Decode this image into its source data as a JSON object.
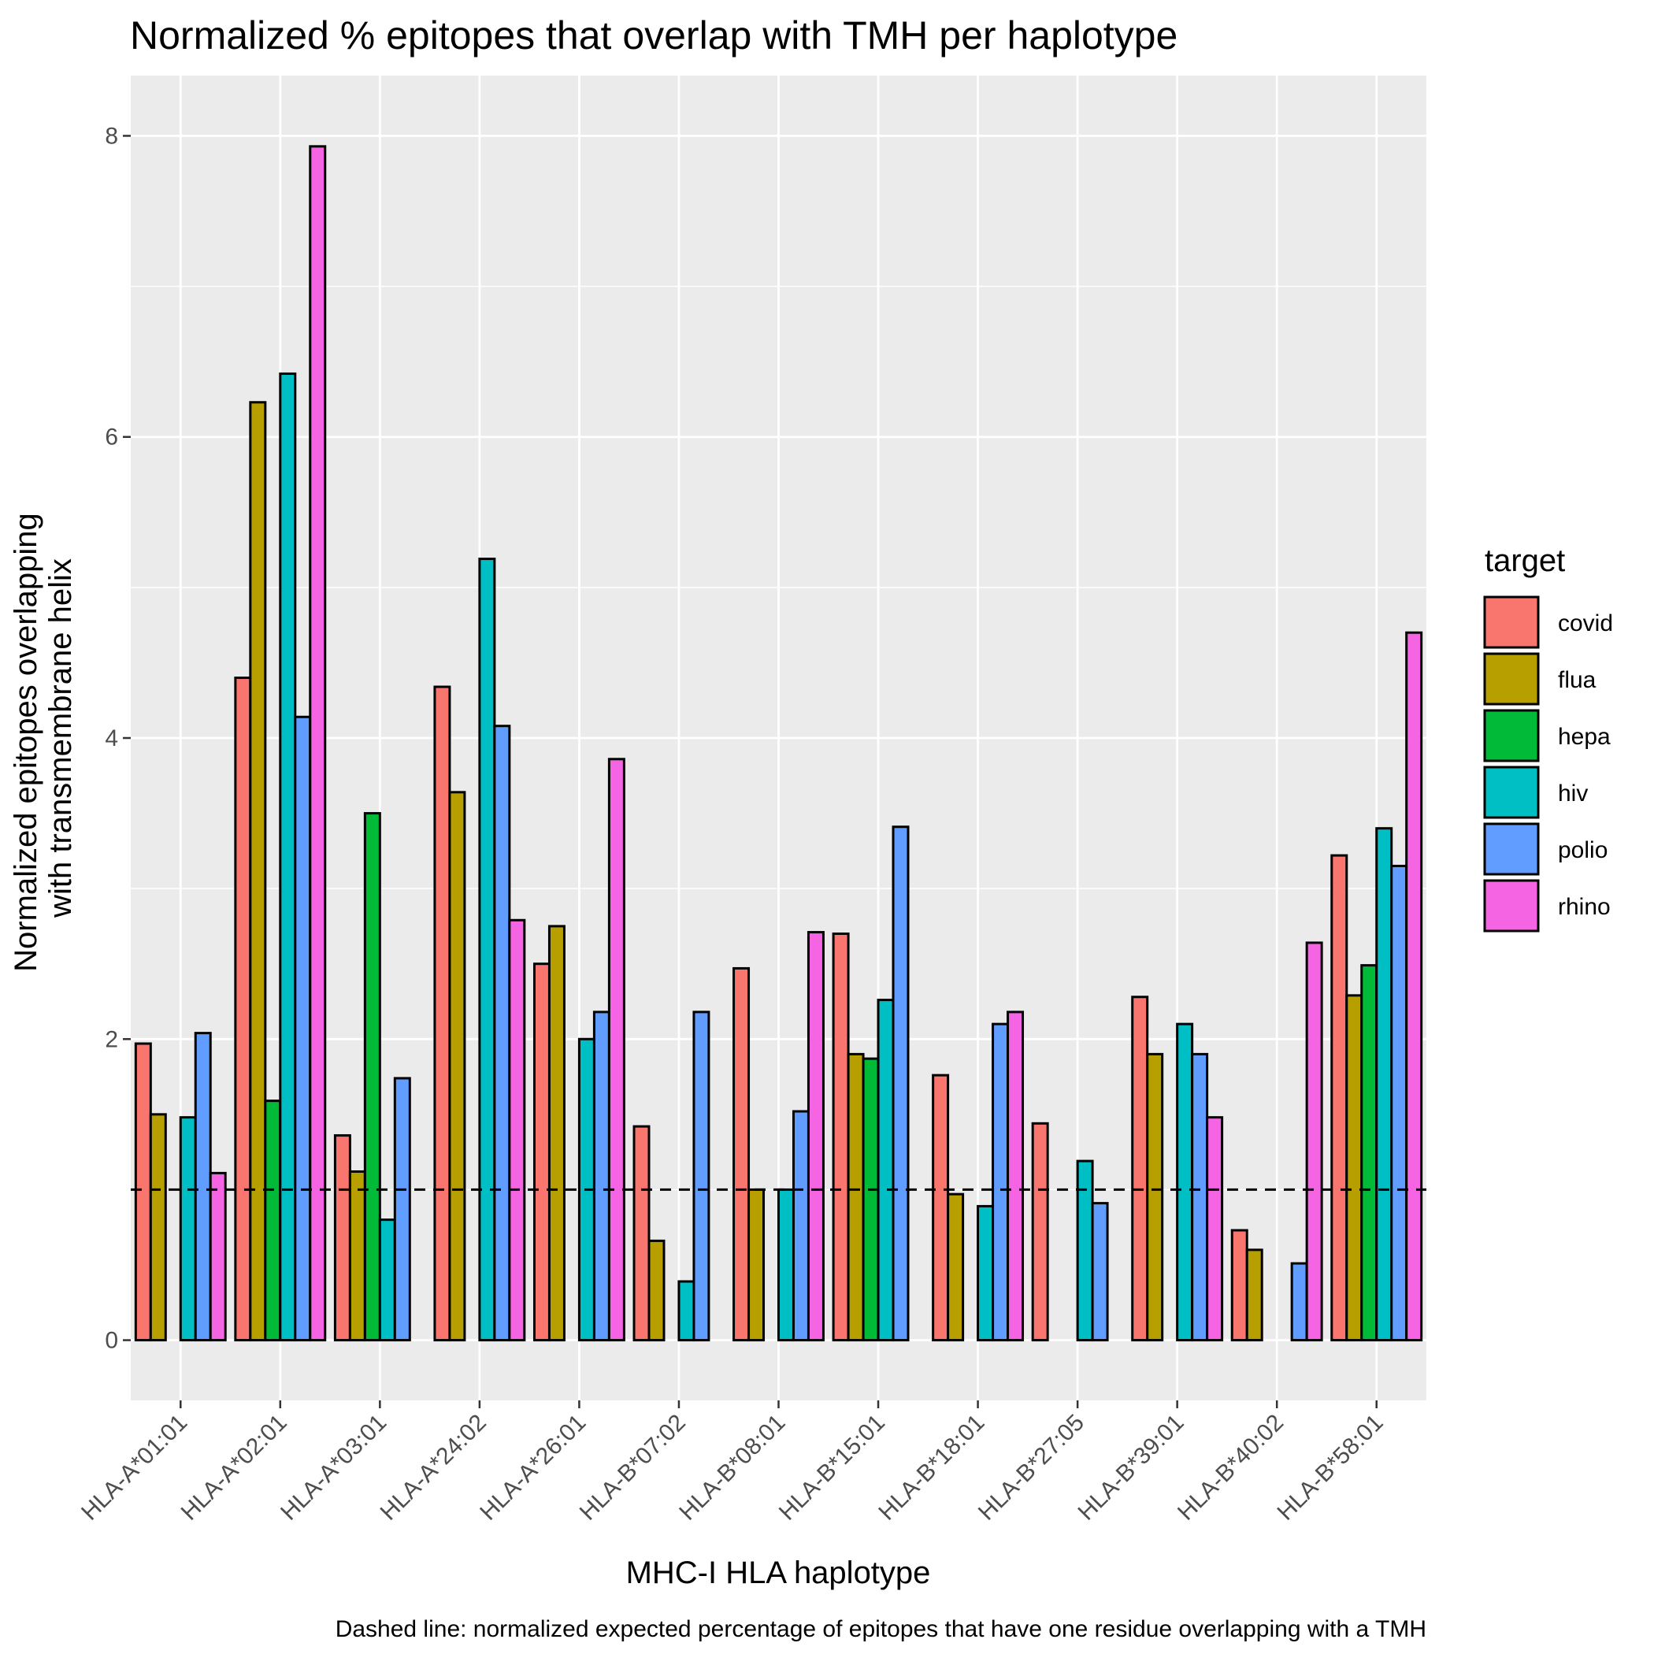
{
  "chart_data": {
    "type": "bar",
    "title": "Normalized % epitopes that overlap with TMH per haplotype",
    "xlabel": "MHC-I HLA haplotype",
    "ylabel": [
      "Normalized epitopes overlapping",
      "with transmembrane helix"
    ],
    "caption": "Dashed line: normalized expected percentage of epitopes that have one residue overlapping with a TMH",
    "legend_title": "target",
    "legend_position": "right",
    "grid": true,
    "ylim": [
      -0.4,
      8.4
    ],
    "yticks": [
      0,
      2,
      4,
      6,
      8
    ],
    "reference_line": {
      "y": 1.0,
      "style": "dashed"
    },
    "categories": [
      "HLA-A*01:01",
      "HLA-A*02:01",
      "HLA-A*03:01",
      "HLA-A*24:02",
      "HLA-A*26:01",
      "HLA-B*07:02",
      "HLA-B*08:01",
      "HLA-B*15:01",
      "HLA-B*18:01",
      "HLA-B*27:05",
      "HLA-B*39:01",
      "HLA-B*40:02",
      "HLA-B*58:01"
    ],
    "series": [
      {
        "name": "covid",
        "color": "#F8766D",
        "values": [
          1.97,
          4.4,
          1.36,
          4.34,
          2.5,
          1.42,
          2.47,
          2.7,
          1.76,
          1.44,
          2.28,
          0.73,
          3.22
        ]
      },
      {
        "name": "flua",
        "color": "#B79F00",
        "values": [
          1.5,
          6.23,
          1.12,
          3.64,
          2.75,
          0.66,
          1.0,
          1.9,
          0.97,
          0,
          1.9,
          0.6,
          2.29
        ]
      },
      {
        "name": "hepa",
        "color": "#00BA38",
        "values": [
          0,
          1.59,
          3.5,
          0,
          0,
          0,
          0,
          1.87,
          0,
          0,
          0,
          0,
          2.49
        ]
      },
      {
        "name": "hiv",
        "color": "#00BFC4",
        "values": [
          1.48,
          6.42,
          0.8,
          5.19,
          2.0,
          0.39,
          1.0,
          2.26,
          0.89,
          1.19,
          2.1,
          0,
          3.4
        ]
      },
      {
        "name": "polio",
        "color": "#619CFF",
        "values": [
          2.04,
          4.14,
          1.74,
          4.08,
          2.18,
          2.18,
          1.52,
          3.41,
          2.1,
          0.91,
          1.9,
          0.51,
          3.15
        ]
      },
      {
        "name": "rhino",
        "color": "#F564E3",
        "values": [
          1.11,
          7.93,
          0,
          2.79,
          3.86,
          0,
          2.71,
          0,
          2.18,
          0,
          1.48,
          2.64,
          4.7
        ]
      }
    ]
  }
}
